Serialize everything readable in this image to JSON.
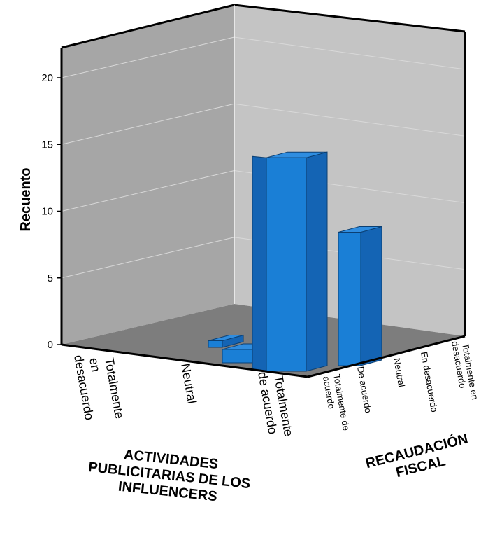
{
  "chart_data": {
    "type": "bar3d",
    "ylabel": "Recuento",
    "ylim": [
      0,
      20
    ],
    "yticks": [
      "0",
      "5",
      "10",
      "15",
      "20"
    ],
    "x_axis": {
      "title_lines": [
        "ACTIVIDADES",
        "PUBLICITARIAS DE LOS",
        "INFLUENCERS"
      ],
      "categories": [
        {
          "lines": [
            "Totalmente",
            "en",
            "desacuerdo"
          ]
        },
        {
          "lines": [
            "Neutral"
          ]
        },
        {
          "lines": [
            "Totalmente",
            "de acuerdo"
          ]
        }
      ]
    },
    "depth_axis": {
      "title_lines": [
        "RECAUDACIÓN",
        "FISCAL"
      ],
      "categories": [
        {
          "lines": [
            "Totalmente de",
            "acuerdo"
          ]
        },
        {
          "lines": [
            "De acuerdo"
          ]
        },
        {
          "lines": [
            "Neutral"
          ]
        },
        {
          "lines": [
            "En desacuerdo"
          ]
        },
        {
          "lines": [
            "Totalmente en",
            "desacuerdo"
          ]
        }
      ]
    },
    "bars": [
      {
        "x": "Totalmente de acuerdo",
        "depth": "Totalmente de acuerdo",
        "value": 16
      },
      {
        "x": "Totalmente de acuerdo",
        "depth": "De acuerdo",
        "value": 10
      },
      {
        "x": "Neutral",
        "depth": "Totalmente de acuerdo",
        "value": 1
      },
      {
        "x": "Totalmente en desacuerdo",
        "depth": "Totalmente de acuerdo",
        "value": 0.5
      }
    ],
    "colors": {
      "bar_front": "#1a7fd6",
      "bar_side": "#1464b4",
      "bar_top": "#2f8de0",
      "left_wall": "#a6a6a6",
      "back_wall": "#c4c4c4",
      "floor": "#7d7d7d"
    }
  }
}
